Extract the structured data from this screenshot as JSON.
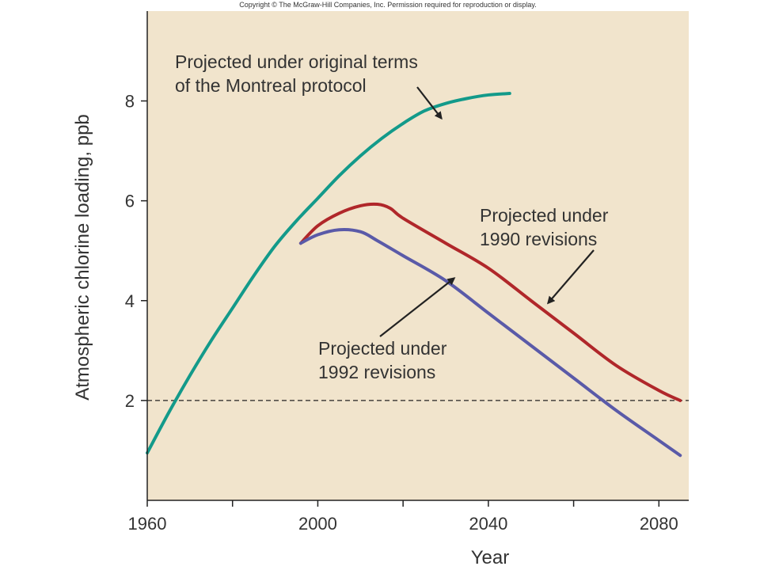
{
  "copyright": "Copyright © The McGraw-Hill Companies, Inc. Permission required for reproduction or display.",
  "chart_data": {
    "type": "line",
    "xlabel": "Year",
    "ylabel": "Atmospheric chlorine loading, ppb",
    "xlim": [
      1960,
      2087
    ],
    "ylim": [
      0,
      9.8
    ],
    "x_ticks": [
      1960,
      1980,
      2000,
      2020,
      2040,
      2060,
      2080
    ],
    "x_tick_labels": [
      "1960",
      "",
      "2000",
      "",
      "2040",
      "",
      "2080"
    ],
    "y_ticks": [
      2,
      4,
      6,
      8
    ],
    "y_tick_labels": [
      "2",
      "4",
      "6",
      "8"
    ],
    "reference_line": {
      "y": 2,
      "style": "dashed"
    },
    "background_color": "#f1e4cc",
    "grid": false,
    "series": [
      {
        "color": "#139a8a",
        "x": [
          1960,
          1965,
          1970,
          1975,
          1980,
          1985,
          1990,
          1995,
          2000,
          2005,
          2010,
          2015,
          2020,
          2025,
          2030,
          2035,
          2040,
          2045
        ],
        "y": [
          0.95,
          1.75,
          2.5,
          3.2,
          3.85,
          4.5,
          5.1,
          5.6,
          6.05,
          6.5,
          6.9,
          7.25,
          7.55,
          7.8,
          7.95,
          8.05,
          8.12,
          8.15
        ]
      },
      {
        "color": "#b0272a",
        "x": [
          1996,
          2000,
          2005,
          2010,
          2014,
          2017,
          2020,
          2030,
          2040,
          2050,
          2060,
          2070,
          2080,
          2085
        ],
        "y": [
          5.15,
          5.5,
          5.75,
          5.9,
          5.93,
          5.85,
          5.65,
          5.15,
          4.65,
          4.0,
          3.35,
          2.7,
          2.2,
          2.0
        ]
      },
      {
        "color": "#5a5aa8",
        "x": [
          1996,
          2000,
          2005,
          2010,
          2014,
          2020,
          2030,
          2040,
          2050,
          2060,
          2070,
          2080,
          2085
        ],
        "y": [
          5.15,
          5.32,
          5.42,
          5.38,
          5.2,
          4.9,
          4.4,
          3.75,
          3.1,
          2.45,
          1.8,
          1.2,
          0.9
        ]
      }
    ],
    "annotations": [
      {
        "lines": [
          "Projected under original terms",
          "of the Montreal protocol"
        ],
        "arrow_to": {
          "x": 2029,
          "y": 7.65
        }
      },
      {
        "lines": [
          "Projected under",
          "1990 revisions"
        ],
        "arrow_to": {
          "x": 2054,
          "y": 3.95
        }
      },
      {
        "lines": [
          "Projected under",
          "1992 revisions"
        ],
        "arrow_to": {
          "x": 2032,
          "y": 4.45
        }
      }
    ]
  }
}
